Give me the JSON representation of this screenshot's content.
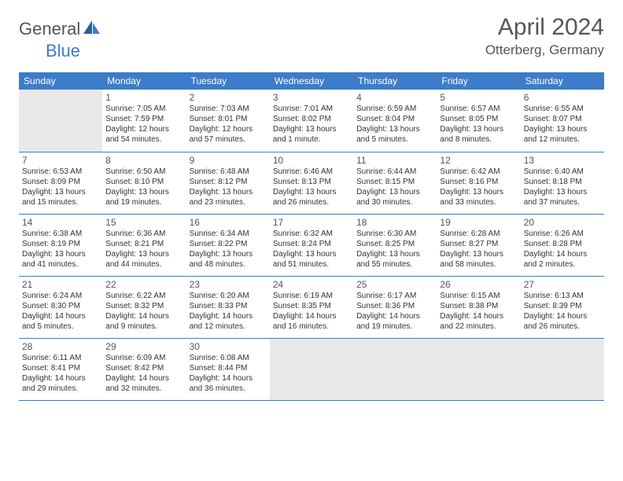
{
  "logo": {
    "part1": "General",
    "part2": "Blue"
  },
  "title": "April 2024",
  "location": "Otterberg, Germany",
  "colors": {
    "header_bg": "#3d7cc9",
    "header_fg": "#ffffff",
    "text": "#333333",
    "muted_bg": "#e9e9e9",
    "border": "#3d7cc9",
    "logo_blue": "#3d7cc9",
    "logo_gray": "#555555"
  },
  "day_headers": [
    "Sunday",
    "Monday",
    "Tuesday",
    "Wednesday",
    "Thursday",
    "Friday",
    "Saturday"
  ],
  "weeks": [
    [
      {
        "muted": true
      },
      {
        "n": "1",
        "sr": "7:05 AM",
        "ss": "7:59 PM",
        "dl": "12 hours and 54 minutes."
      },
      {
        "n": "2",
        "sr": "7:03 AM",
        "ss": "8:01 PM",
        "dl": "12 hours and 57 minutes."
      },
      {
        "n": "3",
        "sr": "7:01 AM",
        "ss": "8:02 PM",
        "dl": "13 hours and 1 minute."
      },
      {
        "n": "4",
        "sr": "6:59 AM",
        "ss": "8:04 PM",
        "dl": "13 hours and 5 minutes."
      },
      {
        "n": "5",
        "sr": "6:57 AM",
        "ss": "8:05 PM",
        "dl": "13 hours and 8 minutes."
      },
      {
        "n": "6",
        "sr": "6:55 AM",
        "ss": "8:07 PM",
        "dl": "13 hours and 12 minutes."
      }
    ],
    [
      {
        "n": "7",
        "sr": "6:53 AM",
        "ss": "8:09 PM",
        "dl": "13 hours and 15 minutes."
      },
      {
        "n": "8",
        "sr": "6:50 AM",
        "ss": "8:10 PM",
        "dl": "13 hours and 19 minutes."
      },
      {
        "n": "9",
        "sr": "6:48 AM",
        "ss": "8:12 PM",
        "dl": "13 hours and 23 minutes."
      },
      {
        "n": "10",
        "sr": "6:46 AM",
        "ss": "8:13 PM",
        "dl": "13 hours and 26 minutes."
      },
      {
        "n": "11",
        "sr": "6:44 AM",
        "ss": "8:15 PM",
        "dl": "13 hours and 30 minutes."
      },
      {
        "n": "12",
        "sr": "6:42 AM",
        "ss": "8:16 PM",
        "dl": "13 hours and 33 minutes."
      },
      {
        "n": "13",
        "sr": "6:40 AM",
        "ss": "8:18 PM",
        "dl": "13 hours and 37 minutes."
      }
    ],
    [
      {
        "n": "14",
        "sr": "6:38 AM",
        "ss": "8:19 PM",
        "dl": "13 hours and 41 minutes."
      },
      {
        "n": "15",
        "sr": "6:36 AM",
        "ss": "8:21 PM",
        "dl": "13 hours and 44 minutes."
      },
      {
        "n": "16",
        "sr": "6:34 AM",
        "ss": "8:22 PM",
        "dl": "13 hours and 48 minutes."
      },
      {
        "n": "17",
        "sr": "6:32 AM",
        "ss": "8:24 PM",
        "dl": "13 hours and 51 minutes."
      },
      {
        "n": "18",
        "sr": "6:30 AM",
        "ss": "8:25 PM",
        "dl": "13 hours and 55 minutes."
      },
      {
        "n": "19",
        "sr": "6:28 AM",
        "ss": "8:27 PM",
        "dl": "13 hours and 58 minutes."
      },
      {
        "n": "20",
        "sr": "6:26 AM",
        "ss": "8:28 PM",
        "dl": "14 hours and 2 minutes."
      }
    ],
    [
      {
        "n": "21",
        "sr": "6:24 AM",
        "ss": "8:30 PM",
        "dl": "14 hours and 5 minutes."
      },
      {
        "n": "22",
        "sr": "6:22 AM",
        "ss": "8:32 PM",
        "dl": "14 hours and 9 minutes."
      },
      {
        "n": "23",
        "sr": "6:20 AM",
        "ss": "8:33 PM",
        "dl": "14 hours and 12 minutes."
      },
      {
        "n": "24",
        "sr": "6:19 AM",
        "ss": "8:35 PM",
        "dl": "14 hours and 16 minutes."
      },
      {
        "n": "25",
        "sr": "6:17 AM",
        "ss": "8:36 PM",
        "dl": "14 hours and 19 minutes."
      },
      {
        "n": "26",
        "sr": "6:15 AM",
        "ss": "8:38 PM",
        "dl": "14 hours and 22 minutes."
      },
      {
        "n": "27",
        "sr": "6:13 AM",
        "ss": "8:39 PM",
        "dl": "14 hours and 26 minutes."
      }
    ],
    [
      {
        "n": "28",
        "sr": "6:11 AM",
        "ss": "8:41 PM",
        "dl": "14 hours and 29 minutes."
      },
      {
        "n": "29",
        "sr": "6:09 AM",
        "ss": "8:42 PM",
        "dl": "14 hours and 32 minutes."
      },
      {
        "n": "30",
        "sr": "6:08 AM",
        "ss": "8:44 PM",
        "dl": "14 hours and 36 minutes."
      },
      {
        "muted": true
      },
      {
        "muted": true
      },
      {
        "muted": true
      },
      {
        "muted": true
      }
    ]
  ],
  "labels": {
    "sunrise": "Sunrise:",
    "sunset": "Sunset:",
    "daylight": "Daylight:"
  }
}
